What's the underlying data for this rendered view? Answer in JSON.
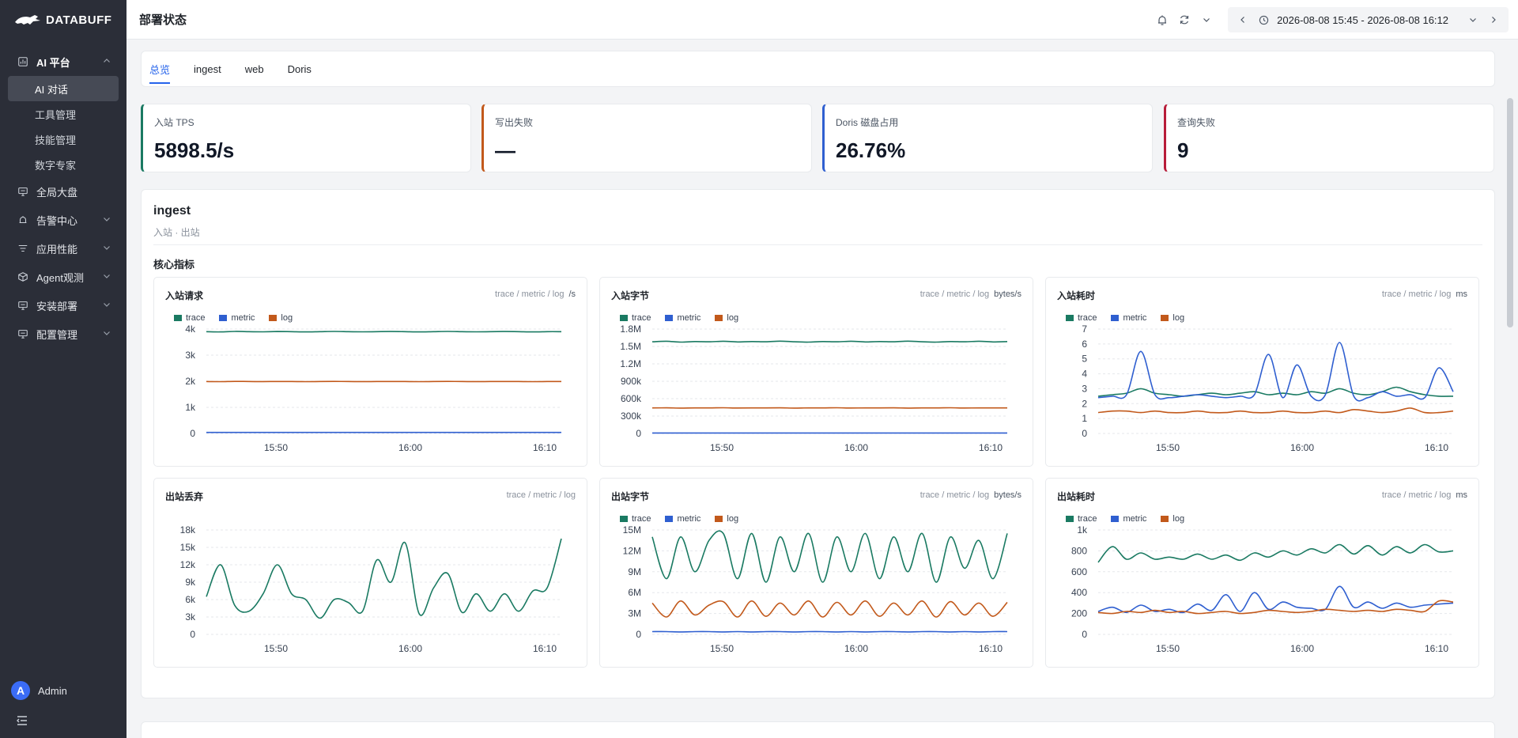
{
  "app": {
    "logo_text": "DATABUFF",
    "page_title": "部署状态"
  },
  "sidebar": {
    "groups": [
      {
        "label": "AI 平台",
        "icon": "chart-bar-icon",
        "expanded": true,
        "items": [
          "AI 对话",
          "工具管理",
          "技能管理",
          "数字专家"
        ],
        "selected": "AI 对话"
      },
      {
        "label": "全局大盘",
        "icon": "monitor-icon",
        "expandable": false
      },
      {
        "label": "告警中心",
        "icon": "alarm-icon",
        "expandable": true
      },
      {
        "label": "应用性能",
        "icon": "filter-lines-icon",
        "expandable": true
      },
      {
        "label": "Agent观测",
        "icon": "cube-icon",
        "expandable": true
      },
      {
        "label": "安装部署",
        "icon": "monitor-icon",
        "expandable": true
      },
      {
        "label": "配置管理",
        "icon": "monitor-icon",
        "expandable": true
      }
    ],
    "user": {
      "avatar_letter": "A",
      "name": "Admin"
    }
  },
  "topbar": {
    "time_range": "2026-08-08 15:45 - 2026-08-08 16:12"
  },
  "tabs": [
    "总览",
    "ingest",
    "web",
    "Doris"
  ],
  "active_tab": "总览",
  "kpis": [
    {
      "label": "入站 TPS",
      "value": "5898.5/s",
      "color": "#1a7a62"
    },
    {
      "label": "写出失败",
      "value": "—",
      "color": "#c2591b"
    },
    {
      "label": "Doris 磁盘占用",
      "value": "26.76%",
      "color": "#2f5fd0"
    },
    {
      "label": "查询失败",
      "value": "9",
      "color": "#b81d3a"
    }
  ],
  "section": {
    "title": "ingest",
    "subtitle": "入站 · 出站",
    "group_title": "核心指标"
  },
  "series_colors": {
    "trace": "#1a7a62",
    "metric": "#2f5fd0",
    "log": "#c2591b"
  },
  "chart_data": [
    {
      "type": "line",
      "title": "入站请求",
      "sources": "trace / metric / log",
      "unit": "/s",
      "legend": [
        "trace",
        "metric",
        "log"
      ],
      "y_ticks": [
        "0",
        "1k",
        "2k",
        "3k",
        "4k"
      ],
      "ylim": [
        0,
        4000
      ],
      "x_ticks": [
        "15:50",
        "16:00",
        "16:10"
      ],
      "series": [
        {
          "name": "trace",
          "values": [
            3900,
            3890,
            3910,
            3900,
            3895,
            3905,
            3900,
            3890,
            3900,
            3910,
            3900,
            3895,
            3900,
            3905,
            3900,
            3890,
            3900,
            3910,
            3900,
            3895,
            3900,
            3905,
            3900,
            3890,
            3900,
            3900
          ]
        },
        {
          "name": "metric",
          "values": [
            40,
            40,
            40,
            40,
            40,
            40,
            40,
            40,
            40,
            40,
            40,
            40,
            40,
            40,
            40,
            40,
            40,
            40,
            40,
            40,
            40,
            40,
            40,
            40,
            40,
            40
          ]
        },
        {
          "name": "log",
          "values": [
            1990,
            1985,
            1995,
            1990,
            1988,
            1992,
            1990,
            1985,
            1990,
            1995,
            1990,
            1988,
            1990,
            1992,
            1990,
            1985,
            1990,
            1995,
            1990,
            1988,
            1990,
            1992,
            1990,
            1985,
            1990,
            1990
          ]
        }
      ]
    },
    {
      "type": "line",
      "title": "入站字节",
      "sources": "trace / metric / log",
      "unit": "bytes/s",
      "legend": [
        "trace",
        "metric",
        "log"
      ],
      "y_ticks": [
        "0",
        "300k",
        "600k",
        "900k",
        "1.2M",
        "1.5M",
        "1.8M"
      ],
      "ylim": [
        0,
        1800000
      ],
      "x_ticks": [
        "15:50",
        "16:00",
        "16:10"
      ],
      "series": [
        {
          "name": "trace",
          "values": [
            1580000,
            1590000,
            1575000,
            1585000,
            1580000,
            1590000,
            1578000,
            1585000,
            1580000,
            1592000,
            1580000,
            1575000,
            1585000,
            1580000,
            1590000,
            1578000,
            1585000,
            1580000,
            1592000,
            1580000,
            1575000,
            1585000,
            1580000,
            1590000,
            1578000,
            1585000
          ]
        },
        {
          "name": "metric",
          "values": [
            8000,
            8000,
            8000,
            8000,
            8000,
            8000,
            8000,
            8000,
            8000,
            8000,
            8000,
            8000,
            8000,
            8000,
            8000,
            8000,
            8000,
            8000,
            8000,
            8000,
            8000,
            8000,
            8000,
            8000,
            8000,
            8000
          ]
        },
        {
          "name": "log",
          "values": [
            440000,
            442000,
            438000,
            441000,
            440000,
            443000,
            439000,
            441000,
            440000,
            442000,
            438000,
            441000,
            440000,
            443000,
            439000,
            441000,
            440000,
            442000,
            438000,
            441000,
            440000,
            443000,
            439000,
            441000,
            440000,
            440000
          ]
        }
      ]
    },
    {
      "type": "line",
      "title": "入站耗时",
      "sources": "trace / metric / log",
      "unit": "ms",
      "legend": [
        "trace",
        "metric",
        "log"
      ],
      "y_ticks": [
        "0",
        "1",
        "2",
        "3",
        "4",
        "5",
        "6",
        "7"
      ],
      "ylim": [
        0,
        7
      ],
      "x_ticks": [
        "15:50",
        "16:00",
        "16:10"
      ],
      "series": [
        {
          "name": "trace",
          "values": [
            2.5,
            2.6,
            2.7,
            3.0,
            2.7,
            2.6,
            2.5,
            2.6,
            2.7,
            2.6,
            2.7,
            2.8,
            2.6,
            2.7,
            2.6,
            2.8,
            2.7,
            3.0,
            2.7,
            2.6,
            2.8,
            3.1,
            2.8,
            2.6,
            2.5,
            2.5
          ]
        },
        {
          "name": "metric",
          "values": [
            2.4,
            2.5,
            2.6,
            5.5,
            2.6,
            2.4,
            2.5,
            2.6,
            2.5,
            2.4,
            2.5,
            2.6,
            5.3,
            2.4,
            4.6,
            2.5,
            2.6,
            6.1,
            2.5,
            2.4,
            2.8,
            2.5,
            2.6,
            2.4,
            4.4,
            2.8
          ]
        },
        {
          "name": "log",
          "values": [
            1.4,
            1.5,
            1.5,
            1.4,
            1.5,
            1.4,
            1.4,
            1.5,
            1.4,
            1.4,
            1.5,
            1.4,
            1.4,
            1.5,
            1.4,
            1.4,
            1.5,
            1.4,
            1.6,
            1.5,
            1.4,
            1.5,
            1.7,
            1.4,
            1.4,
            1.5
          ]
        }
      ]
    },
    {
      "type": "line",
      "title": "出站丢弃",
      "sources": "trace / metric / log",
      "unit": "",
      "legend": [],
      "y_ticks": [
        "0",
        "3k",
        "6k",
        "9k",
        "12k",
        "15k",
        "18k"
      ],
      "ylim": [
        0,
        18000
      ],
      "x_ticks": [
        "15:50",
        "16:00",
        "16:10"
      ],
      "series": [
        {
          "name": "trace",
          "values": [
            6500,
            12000,
            5000,
            4000,
            7000,
            12000,
            7000,
            6000,
            2800,
            6000,
            5500,
            4000,
            12800,
            9000,
            15800,
            3500,
            8000,
            10500,
            3800,
            7000,
            4000,
            7000,
            4000,
            7500,
            8000,
            16500
          ]
        }
      ]
    },
    {
      "type": "line",
      "title": "出站字节",
      "sources": "trace / metric / log",
      "unit": "bytes/s",
      "legend": [
        "trace",
        "metric",
        "log"
      ],
      "y_ticks": [
        "0",
        "3M",
        "6M",
        "9M",
        "12M",
        "15M"
      ],
      "ylim": [
        0,
        15000000
      ],
      "x_ticks": [
        "15:50",
        "16:00",
        "16:10"
      ],
      "series": [
        {
          "name": "trace",
          "values": [
            14000000,
            8000000,
            14000000,
            9000000,
            13500000,
            14500000,
            8000000,
            14500000,
            7500000,
            14000000,
            9000000,
            14500000,
            7500000,
            14000000,
            9000000,
            14500000,
            8000000,
            14000000,
            9000000,
            14500000,
            7500000,
            14000000,
            9500000,
            13500000,
            8000000,
            14500000
          ]
        },
        {
          "name": "metric",
          "values": [
            400000,
            400000,
            350000,
            400000,
            400000,
            350000,
            400000,
            350000,
            400000,
            400000,
            350000,
            400000,
            400000,
            350000,
            400000,
            350000,
            400000,
            400000,
            350000,
            400000,
            400000,
            350000,
            400000,
            350000,
            400000,
            400000
          ]
        },
        {
          "name": "log",
          "values": [
            4500000,
            2500000,
            4800000,
            2800000,
            4200000,
            4700000,
            2500000,
            4800000,
            2600000,
            4500000,
            2800000,
            4800000,
            2500000,
            4600000,
            2800000,
            4800000,
            2600000,
            4500000,
            2800000,
            4800000,
            2500000,
            4700000,
            2800000,
            4500000,
            2600000,
            4600000
          ]
        }
      ]
    },
    {
      "type": "line",
      "title": "出站耗时",
      "sources": "trace / metric / log",
      "unit": "ms",
      "legend": [
        "trace",
        "metric",
        "log"
      ],
      "y_ticks": [
        "0",
        "200",
        "400",
        "600",
        "800",
        "1k"
      ],
      "ylim": [
        0,
        1000
      ],
      "x_ticks": [
        "15:50",
        "16:00",
        "16:10"
      ],
      "series": [
        {
          "name": "trace",
          "values": [
            690,
            840,
            720,
            780,
            720,
            740,
            720,
            770,
            720,
            760,
            710,
            780,
            740,
            800,
            760,
            820,
            780,
            860,
            770,
            850,
            760,
            840,
            780,
            860,
            790,
            800
          ]
        },
        {
          "name": "metric",
          "values": [
            220,
            260,
            210,
            280,
            220,
            240,
            210,
            290,
            230,
            380,
            220,
            400,
            240,
            310,
            260,
            250,
            240,
            460,
            260,
            310,
            250,
            300,
            260,
            280,
            290,
            300
          ]
        },
        {
          "name": "log",
          "values": [
            210,
            200,
            220,
            210,
            230,
            210,
            220,
            200,
            210,
            220,
            200,
            210,
            230,
            220,
            210,
            220,
            240,
            230,
            220,
            230,
            220,
            240,
            230,
            220,
            320,
            310
          ]
        }
      ]
    }
  ]
}
